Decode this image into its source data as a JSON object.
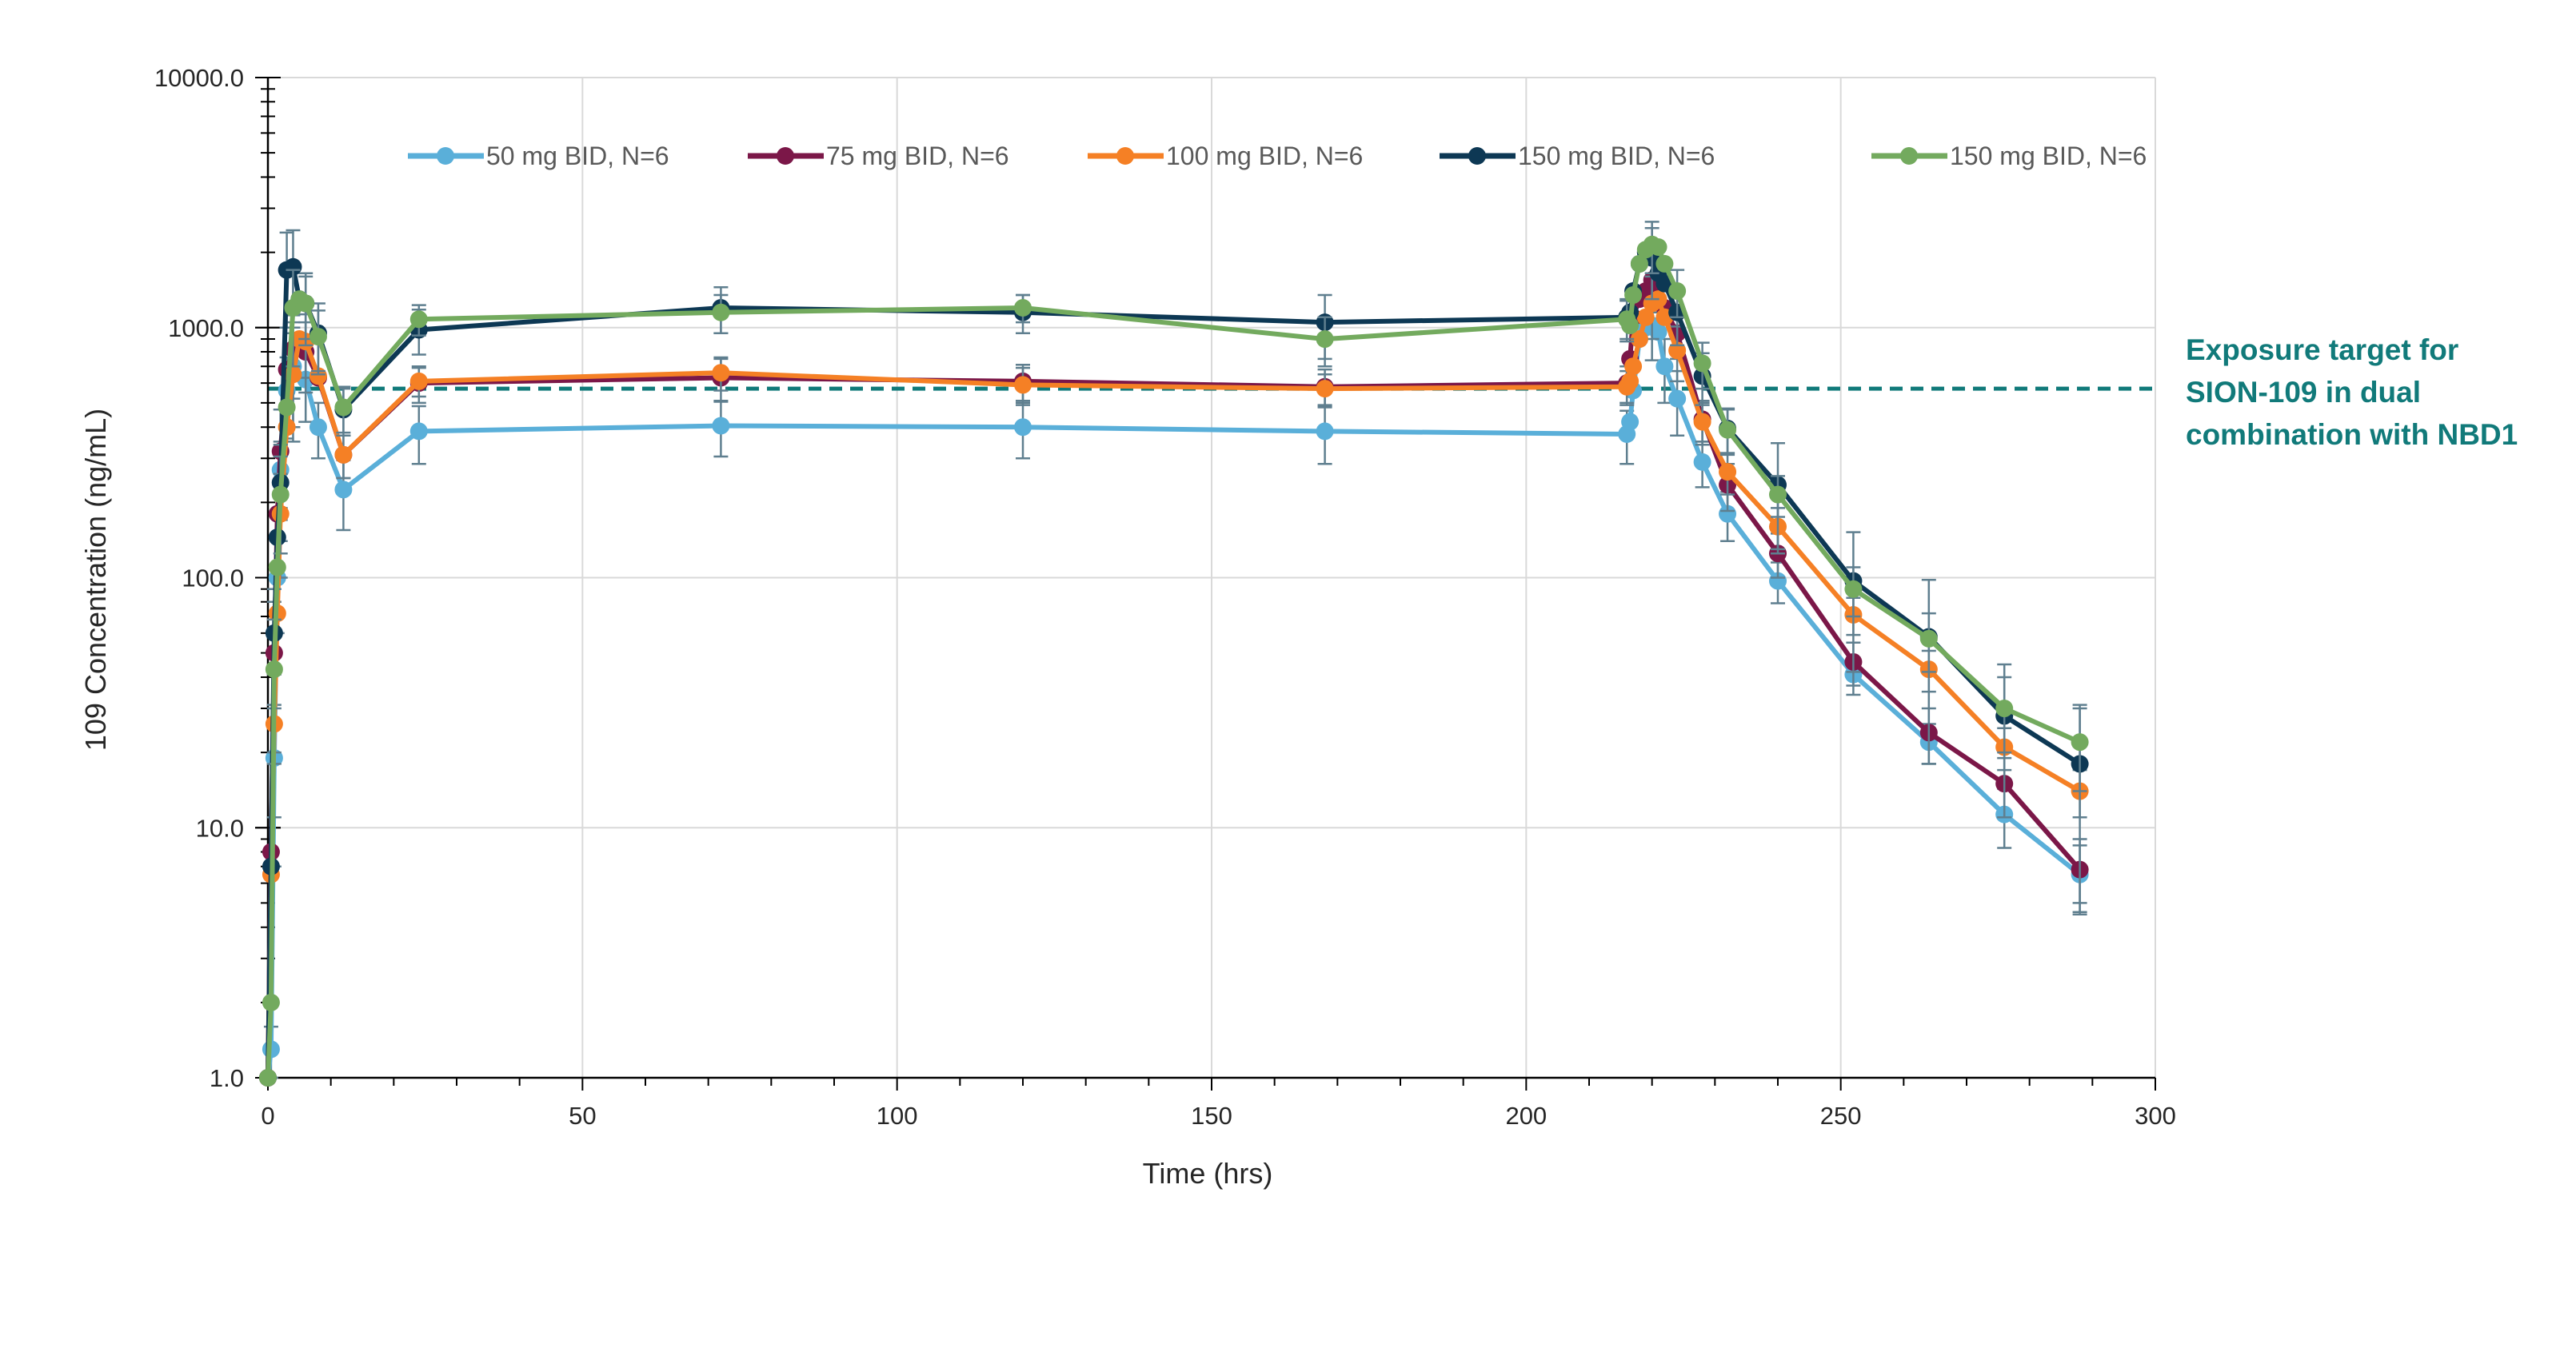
{
  "chart_data": {
    "type": "line",
    "title": "",
    "xlabel": "Time (hrs)",
    "ylabel": "109  Concentration (ng/mL)",
    "x_scale": "linear",
    "y_scale": "log",
    "xlim": [
      0,
      300
    ],
    "ylim": [
      1,
      10000
    ],
    "x_ticks": [
      0,
      50,
      100,
      150,
      200,
      250,
      300
    ],
    "x_tick_labels": [
      "0",
      "50",
      "100",
      "150",
      "200",
      "250",
      "300"
    ],
    "y_ticks": [
      1,
      10,
      100,
      1000,
      10000
    ],
    "y_tick_labels": [
      "1.0",
      "10.0",
      "100.0",
      "1000.0",
      "10000.0"
    ],
    "grid": true,
    "legend_position": "top",
    "series": [
      {
        "name": "50 mg BID, N=6",
        "color": "#5aafd9",
        "points": [
          [
            0,
            1
          ],
          [
            0.5,
            1.3
          ],
          [
            1,
            19
          ],
          [
            1.5,
            100
          ],
          [
            2,
            270
          ],
          [
            3,
            560
          ],
          [
            4,
            700
          ],
          [
            6,
            620
          ],
          [
            8,
            400
          ],
          [
            12,
            225
          ],
          [
            24,
            385
          ],
          [
            72,
            405
          ],
          [
            120,
            400
          ],
          [
            168,
            385
          ],
          [
            216,
            375
          ],
          [
            216.5,
            420
          ],
          [
            217,
            560
          ],
          [
            218,
            900
          ],
          [
            219,
            1000
          ],
          [
            220,
            1020
          ],
          [
            221,
            960
          ],
          [
            222,
            700
          ],
          [
            224,
            520
          ],
          [
            228,
            290
          ],
          [
            232,
            180
          ],
          [
            240,
            97
          ],
          [
            252,
            41
          ],
          [
            264,
            22
          ],
          [
            276,
            11.3
          ],
          [
            288,
            6.5
          ]
        ],
        "err": [
          [
            0.5,
            0.3
          ],
          [
            1,
            12
          ],
          [
            1.5,
            40
          ],
          [
            2,
            80
          ],
          [
            3,
            200
          ],
          [
            4,
            300
          ],
          [
            6,
            200
          ],
          [
            8,
            100
          ],
          [
            12,
            70
          ],
          [
            24,
            100
          ],
          [
            72,
            100
          ],
          [
            120,
            100
          ],
          [
            168,
            100
          ],
          [
            216,
            90
          ],
          [
            220,
            280
          ],
          [
            222,
            200
          ],
          [
            224,
            150
          ],
          [
            228,
            60
          ],
          [
            232,
            40
          ],
          [
            240,
            18
          ],
          [
            252,
            7
          ],
          [
            264,
            4
          ],
          [
            276,
            3
          ],
          [
            288,
            2
          ]
        ]
      },
      {
        "name": "75 mg BID, N=6",
        "color": "#7b1748",
        "points": [
          [
            0,
            1
          ],
          [
            0.5,
            8
          ],
          [
            1,
            50
          ],
          [
            1.5,
            180
          ],
          [
            2,
            320
          ],
          [
            3,
            680
          ],
          [
            4,
            820
          ],
          [
            6,
            800
          ],
          [
            8,
            630
          ],
          [
            12,
            310
          ],
          [
            24,
            600
          ],
          [
            72,
            630
          ],
          [
            120,
            610
          ],
          [
            168,
            580
          ],
          [
            216,
            600
          ],
          [
            216.5,
            750
          ],
          [
            217,
            1100
          ],
          [
            218,
            1300
          ],
          [
            219,
            1400
          ],
          [
            220,
            1550
          ],
          [
            221,
            1500
          ],
          [
            222,
            1200
          ],
          [
            224,
            950
          ],
          [
            228,
            430
          ],
          [
            232,
            235
          ],
          [
            240,
            125
          ],
          [
            252,
            46
          ],
          [
            264,
            24
          ],
          [
            276,
            15
          ],
          [
            288,
            6.8
          ]
        ],
        "err": [
          [
            1,
            30
          ],
          [
            2,
            150
          ],
          [
            4,
            300
          ],
          [
            6,
            250
          ],
          [
            12,
            60
          ],
          [
            24,
            100
          ],
          [
            72,
            120
          ],
          [
            120,
            100
          ],
          [
            168,
            100
          ],
          [
            216,
            100
          ],
          [
            220,
            400
          ],
          [
            224,
            200
          ],
          [
            228,
            80
          ],
          [
            232,
            50
          ],
          [
            240,
            25
          ],
          [
            252,
            9
          ],
          [
            264,
            6
          ],
          [
            276,
            4
          ],
          [
            288,
            2.2
          ]
        ]
      },
      {
        "name": "100 mg BID, N=6",
        "color": "#f58025",
        "points": [
          [
            0,
            1
          ],
          [
            0.5,
            6.5
          ],
          [
            1,
            26
          ],
          [
            1.5,
            72
          ],
          [
            2,
            180
          ],
          [
            3,
            400
          ],
          [
            4,
            650
          ],
          [
            5,
            900
          ],
          [
            6,
            880
          ],
          [
            8,
            640
          ],
          [
            12,
            310
          ],
          [
            24,
            610
          ],
          [
            72,
            660
          ],
          [
            120,
            590
          ],
          [
            168,
            570
          ],
          [
            216,
            580
          ],
          [
            216.5,
            610
          ],
          [
            217,
            700
          ],
          [
            218,
            900
          ],
          [
            219,
            1100
          ],
          [
            220,
            1250
          ],
          [
            221,
            1300
          ],
          [
            222,
            1100
          ],
          [
            224,
            810
          ],
          [
            228,
            420
          ],
          [
            232,
            265
          ],
          [
            240,
            160
          ],
          [
            252,
            71
          ],
          [
            264,
            43
          ],
          [
            276,
            21
          ],
          [
            288,
            14
          ]
        ],
        "err": [
          [
            1,
            15
          ],
          [
            2,
            80
          ],
          [
            4,
            300
          ],
          [
            6,
            250
          ],
          [
            12,
            60
          ],
          [
            24,
            80
          ],
          [
            72,
            100
          ],
          [
            120,
            100
          ],
          [
            168,
            80
          ],
          [
            216,
            90
          ],
          [
            220,
            350
          ],
          [
            224,
            200
          ],
          [
            228,
            80
          ],
          [
            232,
            50
          ],
          [
            240,
            30
          ],
          [
            252,
            12
          ],
          [
            264,
            8
          ],
          [
            276,
            4
          ],
          [
            288,
            3
          ]
        ]
      },
      {
        "name": "150 mg BID, N=6",
        "color": "#0d3854",
        "points": [
          [
            0,
            1
          ],
          [
            0.5,
            7
          ],
          [
            1,
            60
          ],
          [
            1.5,
            145
          ],
          [
            2,
            240
          ],
          [
            3,
            1700
          ],
          [
            4,
            1750
          ],
          [
            5,
            1300
          ],
          [
            6,
            1250
          ],
          [
            8,
            950
          ],
          [
            12,
            470
          ],
          [
            24,
            980
          ],
          [
            72,
            1200
          ],
          [
            120,
            1150
          ],
          [
            168,
            1050
          ],
          [
            216,
            1100
          ],
          [
            216.5,
            1150
          ],
          [
            217,
            1400
          ],
          [
            218,
            1800
          ],
          [
            219,
            2000
          ],
          [
            220,
            1900
          ],
          [
            221,
            1650
          ],
          [
            222,
            1500
          ],
          [
            224,
            1150
          ],
          [
            228,
            640
          ],
          [
            232,
            395
          ],
          [
            240,
            235
          ],
          [
            252,
            97
          ],
          [
            264,
            58
          ],
          [
            276,
            28
          ],
          [
            288,
            18
          ]
        ],
        "err": [
          [
            1,
            30
          ],
          [
            2,
            100
          ],
          [
            3,
            700
          ],
          [
            4,
            700
          ],
          [
            6,
            400
          ],
          [
            8,
            300
          ],
          [
            12,
            100
          ],
          [
            24,
            200
          ],
          [
            72,
            250
          ],
          [
            120,
            200
          ],
          [
            168,
            300
          ],
          [
            216,
            200
          ],
          [
            220,
            600
          ],
          [
            224,
            300
          ],
          [
            228,
            150
          ],
          [
            232,
            80
          ],
          [
            240,
            110
          ],
          [
            252,
            55
          ],
          [
            264,
            40
          ],
          [
            276,
            17
          ],
          [
            288,
            13
          ]
        ]
      },
      {
        "name": "150 mg BID, N=6",
        "color": "#73aa5e",
        "points": [
          [
            0,
            1
          ],
          [
            0.5,
            2
          ],
          [
            1,
            43
          ],
          [
            1.5,
            110
          ],
          [
            2,
            215
          ],
          [
            3,
            480
          ],
          [
            4,
            1200
          ],
          [
            5,
            1300
          ],
          [
            6,
            1250
          ],
          [
            8,
            920
          ],
          [
            12,
            480
          ],
          [
            24,
            1080
          ],
          [
            72,
            1150
          ],
          [
            120,
            1200
          ],
          [
            168,
            900
          ],
          [
            216,
            1080
          ],
          [
            216.5,
            1020
          ],
          [
            217,
            1350
          ],
          [
            218,
            1800
          ],
          [
            219,
            2050
          ],
          [
            220,
            2150
          ],
          [
            221,
            2100
          ],
          [
            222,
            1800
          ],
          [
            224,
            1400
          ],
          [
            228,
            720
          ],
          [
            232,
            390
          ],
          [
            240,
            215
          ],
          [
            252,
            90
          ],
          [
            264,
            57
          ],
          [
            276,
            30
          ],
          [
            288,
            22
          ]
        ],
        "err": [
          [
            1,
            25
          ],
          [
            2,
            90
          ],
          [
            4,
            500
          ],
          [
            6,
            350
          ],
          [
            8,
            250
          ],
          [
            12,
            100
          ],
          [
            24,
            150
          ],
          [
            72,
            200
          ],
          [
            120,
            150
          ],
          [
            168,
            200
          ],
          [
            216,
            200
          ],
          [
            220,
            500
          ],
          [
            224,
            300
          ],
          [
            228,
            150
          ],
          [
            232,
            80
          ],
          [
            240,
            40
          ],
          [
            252,
            20
          ],
          [
            264,
            15
          ],
          [
            276,
            10
          ],
          [
            288,
            8
          ]
        ]
      }
    ],
    "reference_line": {
      "y": 570,
      "color": "#117a7a",
      "style": "dashed",
      "label_lines": [
        "Exposure target for",
        "SION-109 in dual",
        "combination with NBD1"
      ]
    }
  }
}
